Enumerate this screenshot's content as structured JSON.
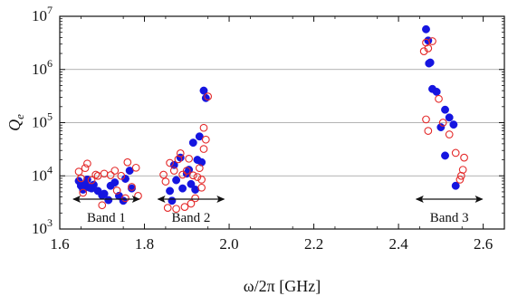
{
  "chart_data": {
    "type": "scatter",
    "title": "",
    "xlabel": "ω/2π [GHz]",
    "ylabel_main": "Q",
    "ylabel_sub": "e",
    "xlim": [
      1.6,
      2.65
    ],
    "ylim": [
      1000,
      10000000
    ],
    "yscale": "log",
    "grid": "horizontal",
    "x_ticks": [
      {
        "value": 1.6,
        "label": "1.6"
      },
      {
        "value": 1.8,
        "label": "1.8"
      },
      {
        "value": 2.0,
        "label": "2.0"
      },
      {
        "value": 2.2,
        "label": "2.2"
      },
      {
        "value": 2.4,
        "label": "2.4"
      },
      {
        "value": 2.6,
        "label": "2.6"
      }
    ],
    "y_ticks": [
      {
        "value": 1000,
        "base": "10",
        "exp": "3"
      },
      {
        "value": 10000,
        "base": "10",
        "exp": "4"
      },
      {
        "value": 100000,
        "base": "10",
        "exp": "5"
      },
      {
        "value": 1000000,
        "base": "10",
        "exp": "6"
      },
      {
        "value": 10000000,
        "base": "10",
        "exp": "7"
      }
    ],
    "series": [
      {
        "marker": "filled-circle",
        "color": "#1515e0",
        "points": [
          [
            1.645,
            8000
          ],
          [
            1.65,
            6500
          ],
          [
            1.655,
            5500
          ],
          [
            1.66,
            7000
          ],
          [
            1.665,
            8500
          ],
          [
            1.67,
            6000
          ],
          [
            1.675,
            5800
          ],
          [
            1.68,
            6800
          ],
          [
            1.69,
            5200
          ],
          [
            1.7,
            4300
          ],
          [
            1.705,
            4600
          ],
          [
            1.715,
            3500
          ],
          [
            1.72,
            6500
          ],
          [
            1.73,
            7500
          ],
          [
            1.74,
            4200
          ],
          [
            1.75,
            3400
          ],
          [
            1.755,
            8800
          ],
          [
            1.765,
            12500
          ],
          [
            1.77,
            5800
          ],
          [
            1.86,
            5200
          ],
          [
            1.865,
            3400
          ],
          [
            1.87,
            16000
          ],
          [
            1.875,
            8300
          ],
          [
            1.885,
            22000
          ],
          [
            1.89,
            5800
          ],
          [
            1.9,
            11000
          ],
          [
            1.905,
            13000
          ],
          [
            1.91,
            7000
          ],
          [
            1.915,
            42000
          ],
          [
            1.92,
            5500
          ],
          [
            1.925,
            20000
          ],
          [
            1.93,
            55000
          ],
          [
            1.935,
            18000
          ],
          [
            1.94,
            400000
          ],
          [
            1.945,
            290000
          ],
          [
            2.465,
            5700000
          ],
          [
            2.47,
            3500000
          ],
          [
            2.472,
            1300000
          ],
          [
            2.475,
            1350000
          ],
          [
            2.48,
            430000
          ],
          [
            2.49,
            380000
          ],
          [
            2.51,
            175000
          ],
          [
            2.5,
            82000
          ],
          [
            2.52,
            125000
          ],
          [
            2.51,
            24000
          ],
          [
            2.53,
            92000
          ],
          [
            2.535,
            6500
          ]
        ]
      },
      {
        "marker": "open-circle",
        "color": "#e42a2a",
        "points": [
          [
            1.645,
            12000
          ],
          [
            1.65,
            9000
          ],
          [
            1.655,
            4800
          ],
          [
            1.66,
            14000
          ],
          [
            1.665,
            17000
          ],
          [
            1.675,
            8300
          ],
          [
            1.685,
            10500
          ],
          [
            1.69,
            10000
          ],
          [
            1.7,
            2800
          ],
          [
            1.705,
            11000
          ],
          [
            1.72,
            10300
          ],
          [
            1.73,
            12500
          ],
          [
            1.735,
            5300
          ],
          [
            1.745,
            10000
          ],
          [
            1.755,
            3800
          ],
          [
            1.76,
            18000
          ],
          [
            1.77,
            6200
          ],
          [
            1.78,
            14200
          ],
          [
            1.785,
            4200
          ],
          [
            1.845,
            10500
          ],
          [
            1.85,
            7800
          ],
          [
            1.855,
            2500
          ],
          [
            1.86,
            17500
          ],
          [
            1.87,
            12500
          ],
          [
            1.875,
            2400
          ],
          [
            1.88,
            20500
          ],
          [
            1.885,
            26500
          ],
          [
            1.89,
            10500
          ],
          [
            1.895,
            2600
          ],
          [
            1.9,
            12500
          ],
          [
            1.905,
            21000
          ],
          [
            1.91,
            3000
          ],
          [
            1.915,
            10200
          ],
          [
            1.92,
            3800
          ],
          [
            1.925,
            9500
          ],
          [
            1.93,
            14000
          ],
          [
            1.935,
            8500
          ],
          [
            1.935,
            6000
          ],
          [
            1.94,
            80000
          ],
          [
            1.94,
            32000
          ],
          [
            1.945,
            48000
          ],
          [
            1.95,
            310000
          ],
          [
            2.465,
            3200000
          ],
          [
            2.46,
            2200000
          ],
          [
            2.47,
            2500000
          ],
          [
            2.48,
            3400000
          ],
          [
            2.465,
            115000
          ],
          [
            2.47,
            70000
          ],
          [
            2.495,
            280000
          ],
          [
            2.505,
            100000
          ],
          [
            2.52,
            60000
          ],
          [
            2.535,
            27000
          ],
          [
            2.545,
            8500
          ],
          [
            2.548,
            10000
          ],
          [
            2.552,
            13000
          ],
          [
            2.555,
            22000
          ]
        ]
      }
    ],
    "annotations": [
      {
        "label": "Band 1",
        "x_from": 1.63,
        "x_to": 1.79
      },
      {
        "label": "Band 2",
        "x_from": 1.83,
        "x_to": 1.99
      },
      {
        "label": "Band 3",
        "x_from": 2.44,
        "x_to": 2.6
      }
    ]
  }
}
